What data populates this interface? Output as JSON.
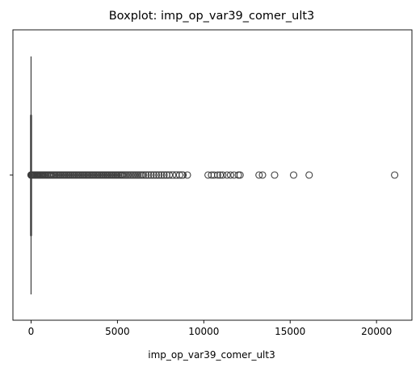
{
  "chart_data": {
    "type": "boxplot",
    "title": "Boxplot: imp_op_var39_comer_ult3",
    "xlabel": "imp_op_var39_comer_ult3",
    "ylabel": "",
    "orientation": "horizontal",
    "xlim": [
      -1050,
      22050
    ],
    "xticks": [
      0,
      5000,
      10000,
      15000,
      20000
    ],
    "tick_labels": [
      "0",
      "5000",
      "10000",
      "15000",
      "20000"
    ],
    "box": {
      "whisker_low": 0,
      "q1": 0,
      "median": 0,
      "q3": 0,
      "whisker_high": 0
    },
    "outlier_range_dense": [
      0,
      8800
    ],
    "outliers": [
      0,
      10,
      20,
      30,
      50,
      80,
      120,
      160,
      200,
      250,
      300,
      350,
      400,
      450,
      500,
      560,
      620,
      680,
      740,
      800,
      870,
      940,
      1010,
      1080,
      1150,
      1220,
      1300,
      1380,
      1460,
      1540,
      1620,
      1700,
      1780,
      1860,
      1940,
      2020,
      2100,
      2180,
      2260,
      2340,
      2420,
      2500,
      2580,
      2660,
      2740,
      2820,
      2900,
      2980,
      3060,
      3140,
      3220,
      3300,
      3380,
      3460,
      3540,
      3620,
      3700,
      3780,
      3860,
      3940,
      4020,
      4100,
      4180,
      4260,
      4340,
      4420,
      4500,
      4580,
      4660,
      4740,
      4820,
      4900,
      4980,
      5060,
      5140,
      5220,
      5300,
      5400,
      5500,
      5600,
      5700,
      5800,
      5900,
      6000,
      6100,
      6200,
      6300,
      6400,
      6500,
      6650,
      6800,
      6950,
      7100,
      7250,
      7400,
      7550,
      7700,
      7850,
      8000,
      8200,
      8400,
      8600,
      8750,
      9050,
      10250,
      10450,
      10600,
      10800,
      10950,
      11100,
      11350,
      11550,
      11750,
      12000,
      12100,
      13200,
      13400,
      14100,
      15200,
      16100,
      21050
    ],
    "grid": false,
    "legend": "none",
    "colors": {
      "box": "#3b6ea5",
      "line": "#3d3d3d",
      "marker_edge": "#3d3d3d",
      "axes": "#000000"
    }
  }
}
